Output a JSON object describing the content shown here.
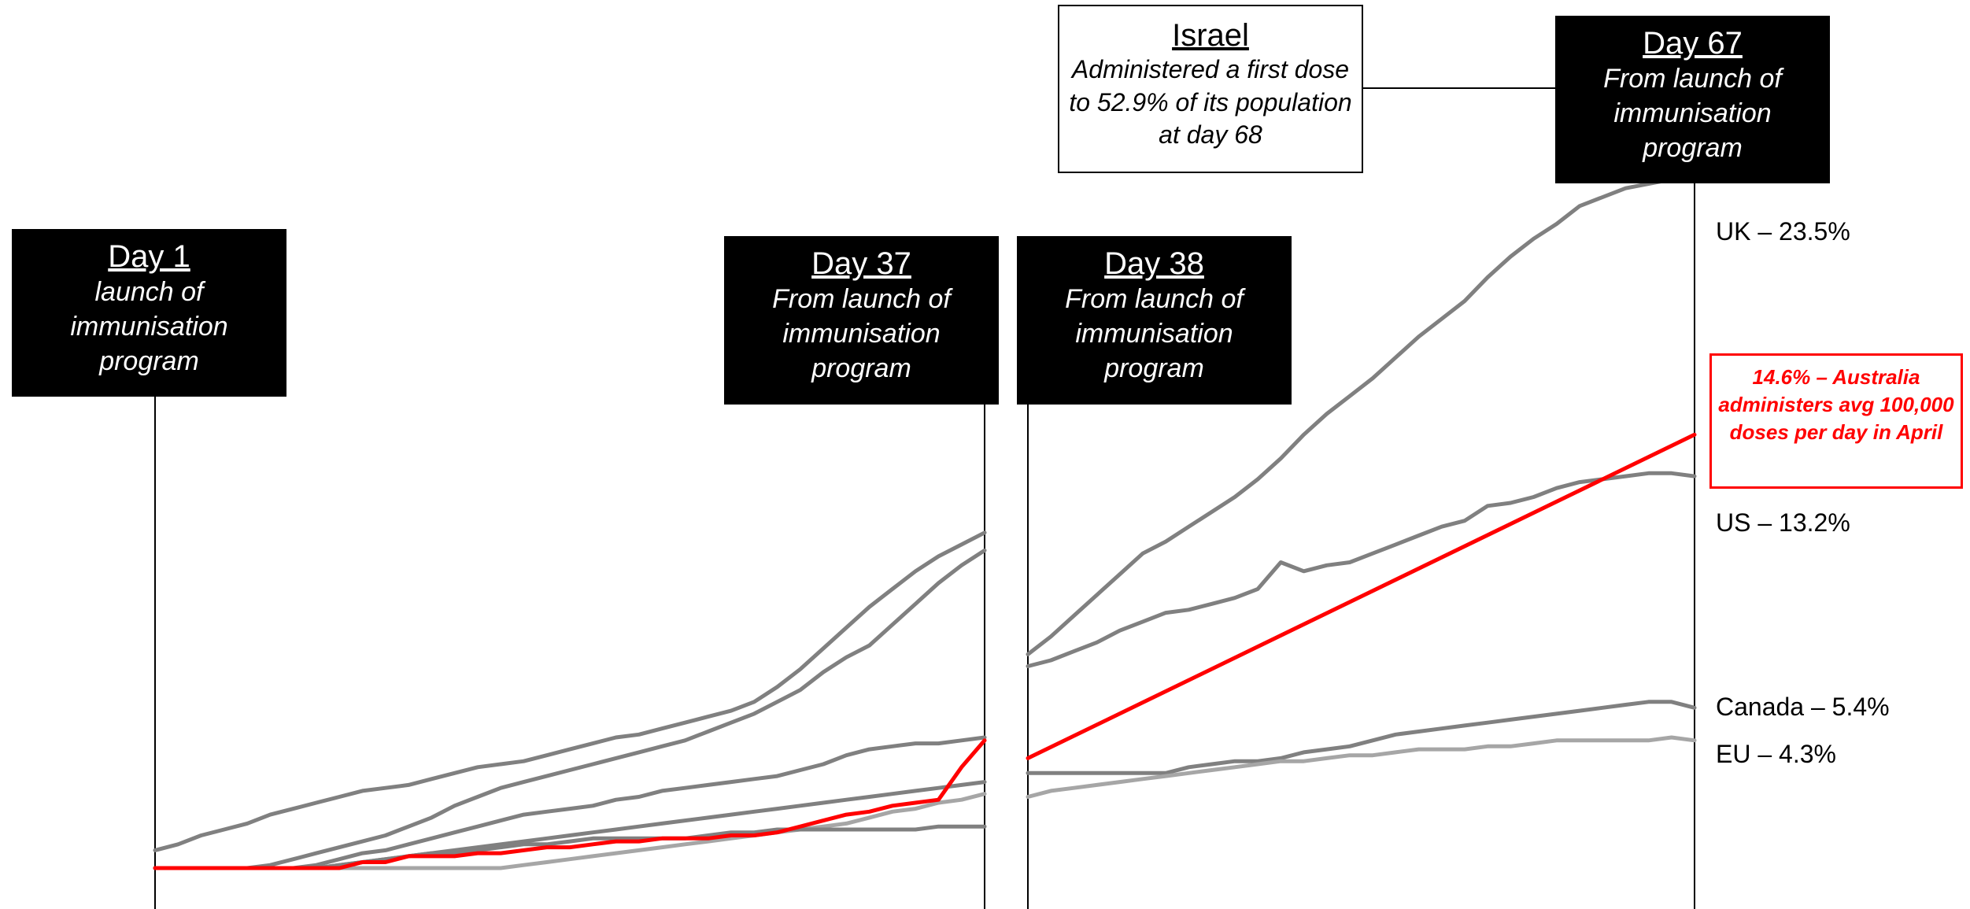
{
  "colors": {
    "australia": "#ff0000",
    "series_dark": "#808080",
    "series_light": "#a6a6a6",
    "callout_bg": "#000000",
    "callout_text": "#ffffff"
  },
  "callouts": {
    "day1": {
      "day": "Day 1",
      "sub": "launch of immunisation program"
    },
    "day37": {
      "day": "Day 37",
      "sub": "From launch of immunisation program"
    },
    "day38": {
      "day": "Day 38",
      "sub": "From launch of immunisation program"
    },
    "day67": {
      "day": "Day 67",
      "sub": "From launch of immunisation program"
    },
    "israel": {
      "title": "Israel",
      "sub": "Administered a first dose to 52.9% of its population at day 68"
    }
  },
  "labels": {
    "uk": "UK – 23.5%",
    "us": "US – 13.2%",
    "canada": "Canada – 5.4%",
    "eu": "EU – 4.3%",
    "australia_note": "14.6% – Australia administers avg 100,000 doses per day in April"
  },
  "chart_data": [
    {
      "type": "line",
      "x_unit": "day",
      "xlim": [
        1,
        37
      ],
      "ylim": [
        0,
        25
      ],
      "grid": false,
      "series": [
        {
          "values": [
            0.6,
            0.8,
            1.1,
            1.3,
            1.5,
            1.8,
            2.0,
            2.2,
            2.4,
            2.6,
            2.7,
            2.8,
            3.0,
            3.2,
            3.4,
            3.5,
            3.6,
            3.8,
            4.0,
            4.2,
            4.4,
            4.5,
            4.7,
            4.9,
            5.1,
            5.3,
            5.6,
            6.1,
            6.7,
            7.4,
            8.1,
            8.8,
            9.4,
            10.0,
            10.5,
            10.9,
            11.3
          ],
          "color": "#808080"
        },
        {
          "values": [
            0.0,
            0.0,
            0.0,
            0.0,
            0.0,
            0.1,
            0.3,
            0.5,
            0.7,
            0.9,
            1.1,
            1.4,
            1.7,
            2.1,
            2.4,
            2.7,
            2.9,
            3.1,
            3.3,
            3.5,
            3.7,
            3.9,
            4.1,
            4.3,
            4.6,
            4.9,
            5.2,
            5.6,
            6.0,
            6.6,
            7.1,
            7.5,
            8.2,
            8.9,
            9.6,
            10.2,
            10.7
          ],
          "color": "#808080"
        },
        {
          "values": [
            0.0,
            0.0,
            0.0,
            0.0,
            0.0,
            0.0,
            0.0,
            0.1,
            0.3,
            0.5,
            0.6,
            0.8,
            1.0,
            1.2,
            1.4,
            1.6,
            1.8,
            1.9,
            2.0,
            2.1,
            2.3,
            2.4,
            2.6,
            2.7,
            2.8,
            2.9,
            3.0,
            3.1,
            3.3,
            3.5,
            3.8,
            4.0,
            4.1,
            4.2,
            4.2,
            4.3,
            4.4
          ],
          "color": "#808080"
        },
        {
          "values": [
            0.0,
            0.0,
            0.0,
            0.0,
            0.0,
            0.0,
            0.0,
            0.0,
            0.1,
            0.2,
            0.3,
            0.4,
            0.5,
            0.6,
            0.7,
            0.8,
            0.9,
            1.0,
            1.1,
            1.2,
            1.3,
            1.4,
            1.5,
            1.6,
            1.7,
            1.8,
            1.9,
            2.0,
            2.1,
            2.2,
            2.3,
            2.4,
            2.5,
            2.6,
            2.7,
            2.8,
            2.9
          ],
          "color": "#808080"
        },
        {
          "values": [
            0.0,
            0.0,
            0.0,
            0.0,
            0.0,
            0.0,
            0.0,
            0.0,
            0.0,
            0.0,
            0.0,
            0.0,
            0.0,
            0.0,
            0.0,
            0.0,
            0.1,
            0.2,
            0.3,
            0.4,
            0.5,
            0.6,
            0.7,
            0.8,
            0.9,
            1.0,
            1.1,
            1.2,
            1.3,
            1.4,
            1.5,
            1.7,
            1.9,
            2.0,
            2.2,
            2.3,
            2.5
          ],
          "color": "#a6a6a6"
        },
        {
          "values": [
            0.0,
            0.0,
            0.0,
            0.0,
            0.0,
            0.0,
            0.0,
            0.0,
            0.1,
            0.2,
            0.3,
            0.4,
            0.5,
            0.5,
            0.6,
            0.7,
            0.8,
            0.8,
            0.9,
            1.0,
            1.0,
            1.0,
            1.0,
            1.0,
            1.1,
            1.2,
            1.2,
            1.3,
            1.3,
            1.3,
            1.3,
            1.3,
            1.3,
            1.3,
            1.4,
            1.4,
            1.4
          ],
          "color": "#808080"
        },
        {
          "values": [
            0.0,
            0.0,
            0.0,
            0.0,
            0.0,
            0.0,
            0.0,
            0.0,
            0.0,
            0.2,
            0.2,
            0.4,
            0.4,
            0.4,
            0.5,
            0.5,
            0.6,
            0.7,
            0.7,
            0.8,
            0.9,
            0.9,
            1.0,
            1.0,
            1.0,
            1.1,
            1.1,
            1.2,
            1.4,
            1.6,
            1.8,
            1.9,
            2.1,
            2.2,
            2.3,
            3.4,
            4.3
          ],
          "color": "#ff0000"
        }
      ]
    },
    {
      "type": "line",
      "x_unit": "day",
      "xlim": [
        38,
        67
      ],
      "ylim": [
        0,
        25
      ],
      "grid": false,
      "series": [
        {
          "values": [
            7.2,
            7.8,
            8.5,
            9.2,
            9.9,
            10.6,
            11.0,
            11.5,
            12.0,
            12.5,
            13.1,
            13.8,
            14.6,
            15.3,
            15.9,
            16.5,
            17.2,
            17.9,
            18.5,
            19.1,
            19.9,
            20.6,
            21.2,
            21.7,
            22.3,
            22.9,
            23.2,
            23.5
          ],
          "x": [
            38,
            39,
            40,
            41,
            42,
            43,
            44,
            45,
            46,
            47,
            48,
            49,
            50,
            51,
            52,
            53,
            54,
            55,
            56,
            57,
            58,
            59,
            60,
            61,
            62,
            64,
            66,
            67
          ],
          "color": "#808080"
        },
        {
          "x": [
            38,
            39,
            40,
            41,
            42,
            43,
            44,
            45,
            46,
            47,
            48,
            49,
            50,
            51,
            52,
            53,
            54,
            55,
            56,
            57,
            58,
            59,
            60,
            61,
            62,
            63,
            64,
            65,
            66,
            67
          ],
          "values": [
            6.8,
            7.0,
            7.3,
            7.6,
            8.0,
            8.3,
            8.6,
            8.7,
            8.9,
            9.1,
            9.4,
            10.3,
            10.0,
            10.2,
            10.3,
            10.6,
            10.9,
            11.2,
            11.5,
            11.7,
            12.2,
            12.3,
            12.5,
            12.8,
            13.0,
            13.1,
            13.2,
            13.3,
            13.3,
            13.2
          ],
          "color": "#808080"
        },
        {
          "x": [
            38,
            67
          ],
          "values": [
            3.7,
            14.6
          ],
          "color": "#ff0000"
        },
        {
          "x": [
            38,
            39,
            40,
            41,
            42,
            43,
            44,
            45,
            46,
            47,
            48,
            49,
            50,
            51,
            52,
            53,
            54,
            55,
            56,
            57,
            58,
            59,
            60,
            61,
            62,
            63,
            64,
            65,
            66,
            67
          ],
          "values": [
            3.2,
            3.2,
            3.2,
            3.2,
            3.2,
            3.2,
            3.2,
            3.4,
            3.5,
            3.6,
            3.6,
            3.7,
            3.9,
            4.0,
            4.1,
            4.3,
            4.5,
            4.6,
            4.7,
            4.8,
            4.9,
            5.0,
            5.1,
            5.2,
            5.3,
            5.4,
            5.5,
            5.6,
            5.6,
            5.4
          ],
          "color": "#808080"
        },
        {
          "x": [
            38,
            39,
            40,
            41,
            42,
            43,
            44,
            45,
            46,
            47,
            48,
            49,
            50,
            51,
            52,
            53,
            54,
            55,
            56,
            57,
            58,
            59,
            60,
            61,
            62,
            63,
            64,
            65,
            66,
            67
          ],
          "values": [
            2.4,
            2.6,
            2.7,
            2.8,
            2.9,
            3.0,
            3.1,
            3.2,
            3.3,
            3.4,
            3.5,
            3.6,
            3.6,
            3.7,
            3.8,
            3.8,
            3.9,
            4.0,
            4.0,
            4.0,
            4.1,
            4.1,
            4.2,
            4.3,
            4.3,
            4.3,
            4.3,
            4.3,
            4.4,
            4.3
          ],
          "color": "#a6a6a6"
        }
      ]
    }
  ]
}
